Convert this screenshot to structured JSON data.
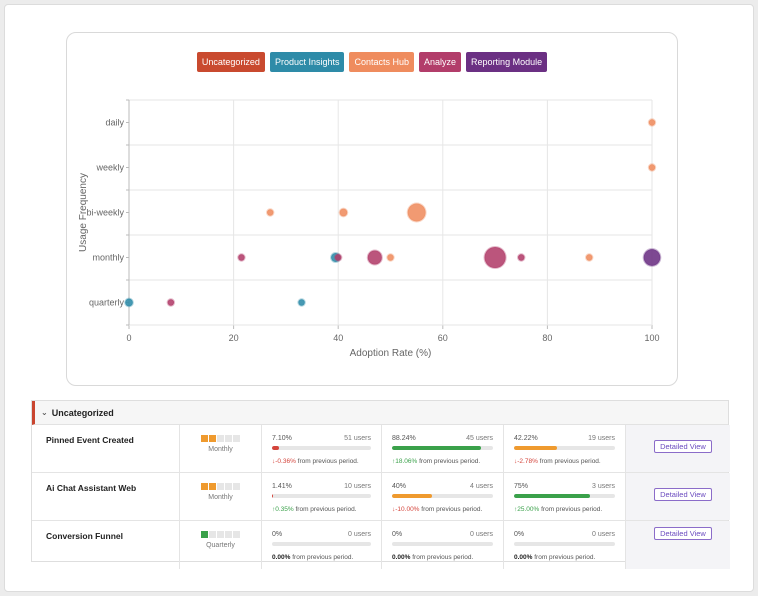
{
  "chart_data": {
    "type": "scatter",
    "xlabel": "Adoption Rate (%)",
    "ylabel": "Usage Frequency",
    "xlim": [
      0,
      100
    ],
    "xticks": [
      "0",
      "20",
      "40",
      "60",
      "80",
      "100"
    ],
    "categories": [
      "daily",
      "weekly",
      "bi-weekly",
      "monthly",
      "quarterly"
    ],
    "grid": true,
    "legend_position": "top-center",
    "series": [
      {
        "name": "Uncategorized",
        "color": "#c94a2f",
        "points": []
      },
      {
        "name": "Product Insights",
        "color": "#2e8ba8",
        "points": [
          {
            "x": 0,
            "y": "quarterly",
            "size": 1.2
          },
          {
            "x": 33,
            "y": "quarterly",
            "size": 1
          },
          {
            "x": 39.5,
            "y": "monthly",
            "size": 1.4
          }
        ]
      },
      {
        "name": "Contacts Hub",
        "color": "#ef8c5e",
        "points": [
          {
            "x": 100,
            "y": "daily",
            "size": 1
          },
          {
            "x": 100,
            "y": "weekly",
            "size": 1
          },
          {
            "x": 27,
            "y": "bi-weekly",
            "size": 1
          },
          {
            "x": 41,
            "y": "bi-weekly",
            "size": 1.2
          },
          {
            "x": 55,
            "y": "bi-weekly",
            "size": 2.8
          },
          {
            "x": 50,
            "y": "monthly",
            "size": 1
          },
          {
            "x": 88,
            "y": "monthly",
            "size": 1
          }
        ]
      },
      {
        "name": "Analyze",
        "color": "#b23d6a",
        "points": [
          {
            "x": 8,
            "y": "quarterly",
            "size": 1
          },
          {
            "x": 21.5,
            "y": "monthly",
            "size": 1
          },
          {
            "x": 40,
            "y": "monthly",
            "size": 1
          },
          {
            "x": 47,
            "y": "monthly",
            "size": 2.2
          },
          {
            "x": 70,
            "y": "monthly",
            "size": 3.3
          },
          {
            "x": 75,
            "y": "monthly",
            "size": 1
          }
        ]
      },
      {
        "name": "Reporting Module",
        "color": "#6b3083",
        "points": [
          {
            "x": 100,
            "y": "monthly",
            "size": 2.6
          }
        ]
      }
    ]
  },
  "table": {
    "group_title": "Uncategorized",
    "rows": [
      {
        "name": "Pinned Event Created",
        "freq_label": "Monthly",
        "freq_level": 2,
        "freq_color": "#ef9a2e",
        "metrics": [
          {
            "pct": "7.10%",
            "fill": 7.1,
            "color": "#d4443b",
            "users": "51 users",
            "change": "-0.36%",
            "dir": "down",
            "suffix": "from previous period."
          },
          {
            "pct": "88.24%",
            "fill": 88.24,
            "color": "#3aa14a",
            "users": "45 users",
            "change": "18.06%",
            "dir": "up",
            "suffix": "from previous period."
          },
          {
            "pct": "42.22%",
            "fill": 42.22,
            "color": "#ef9a2e",
            "users": "19 users",
            "change": "-2.78%",
            "dir": "down",
            "suffix": "from previous period."
          }
        ],
        "action": "Detailed View"
      },
      {
        "name": "Ai Chat Assistant Web",
        "freq_label": "Monthly",
        "freq_level": 2,
        "freq_color": "#ef9a2e",
        "metrics": [
          {
            "pct": "1.41%",
            "fill": 1.41,
            "color": "#d4443b",
            "users": "10 users",
            "change": "0.35%",
            "dir": "up",
            "suffix": "from previous period."
          },
          {
            "pct": "40%",
            "fill": 40,
            "color": "#ef9a2e",
            "users": "4 users",
            "change": "-10.00%",
            "dir": "down",
            "suffix": "from previous period."
          },
          {
            "pct": "75%",
            "fill": 75,
            "color": "#3aa14a",
            "users": "3 users",
            "change": "25.00%",
            "dir": "up",
            "suffix": "from previous period."
          }
        ],
        "action": "Detailed View"
      },
      {
        "name": "Conversion Funnel",
        "freq_label": "Quarterly",
        "freq_level": 1,
        "freq_color": "#3aa14a",
        "metrics": [
          {
            "pct": "0%",
            "fill": 0,
            "color": "#cccccc",
            "users": "0 users",
            "change": "0.00%",
            "dir": "none",
            "suffix": "from previous period."
          },
          {
            "pct": "0%",
            "fill": 0,
            "color": "#cccccc",
            "users": "0 users",
            "change": "0.00%",
            "dir": "none",
            "suffix": "from previous period."
          },
          {
            "pct": "0%",
            "fill": 0,
            "color": "#cccccc",
            "users": "0 users",
            "change": "0.00%",
            "dir": "none",
            "suffix": "from previous period."
          }
        ],
        "action": "Detailed View"
      }
    ]
  }
}
